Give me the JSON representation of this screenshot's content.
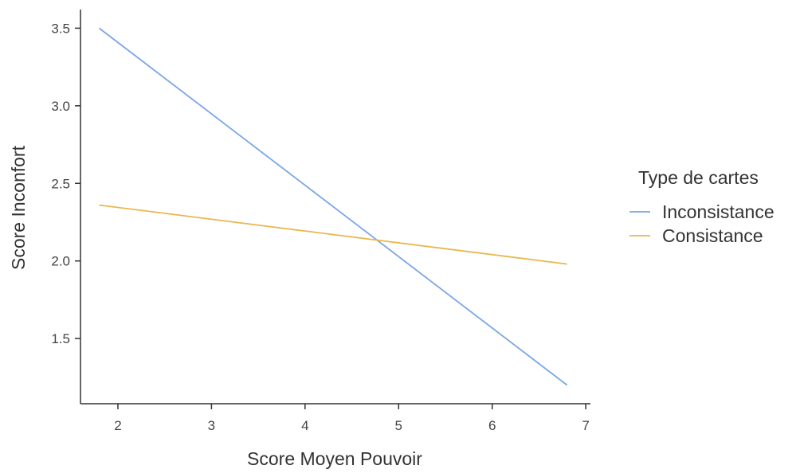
{
  "chart_data": {
    "type": "line",
    "title": "",
    "xlabel": "Score Moyen Pouvoir",
    "ylabel": "Score Inconfort",
    "xlim": [
      1.6,
      7.05
    ],
    "ylim": [
      1.08,
      3.62
    ],
    "x_ticks": [
      2,
      3,
      4,
      5,
      6,
      7
    ],
    "x_tick_labels": [
      "2",
      "3",
      "4",
      "5",
      "6",
      "7"
    ],
    "y_ticks": [
      1.5,
      2.0,
      2.5,
      3.0,
      3.5
    ],
    "y_tick_labels": [
      "1.5",
      "2.0",
      "2.5",
      "3.0",
      "3.5"
    ],
    "grid": false,
    "legend": {
      "title": "Type de cartes",
      "placement": "right"
    },
    "series": [
      {
        "name": "Inconsistance",
        "color": "#7aa6e6",
        "x": [
          1.8,
          6.8
        ],
        "y": [
          3.5,
          1.2
        ]
      },
      {
        "name": "Consistance",
        "color": "#e8b84f",
        "x": [
          1.8,
          6.8
        ],
        "y": [
          2.36,
          1.98
        ]
      }
    ]
  }
}
